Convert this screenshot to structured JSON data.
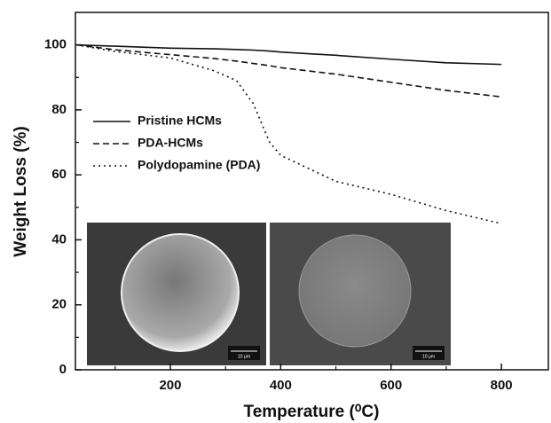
{
  "chart_data": {
    "type": "line",
    "x_label": "Temperature (⁰C)",
    "y_label": "Weight Loss (%)",
    "x": [
      30,
      100,
      200,
      280,
      320,
      350,
      380,
      400,
      450,
      500,
      600,
      700,
      800
    ],
    "series": [
      {
        "name": "Pristine HCMs",
        "color": "#111111",
        "dash": "solid",
        "values": [
          100,
          99.6,
          99,
          98.8,
          98.6,
          98.4,
          98.1,
          97.8,
          97.3,
          96.8,
          95.6,
          94.5,
          94
        ]
      },
      {
        "name": "PDA-HCMs",
        "color": "#111111",
        "dash": "dashed",
        "values": [
          100,
          98.5,
          97,
          95.8,
          95,
          94.3,
          93.6,
          93,
          92,
          91,
          88.5,
          86,
          84
        ]
      },
      {
        "name": "Polydopamine (PDA)",
        "color": "#111111",
        "dash": "dotted",
        "values": [
          100,
          98,
          96,
          92,
          89,
          82,
          70,
          66,
          62,
          58,
          54,
          49,
          45
        ]
      }
    ],
    "xlim": [
      28,
      885
    ],
    "ylim": [
      0,
      110
    ],
    "xticks": [
      200,
      400,
      600,
      800
    ],
    "yticks": [
      0,
      20,
      40,
      60,
      80,
      100
    ],
    "xminorticks": [
      100,
      300,
      500,
      700
    ],
    "yminorticks": [
      10,
      30,
      50,
      70,
      90
    ],
    "legend": "left",
    "insets": [
      {
        "scale_label": "10 μm"
      },
      {
        "scale_label": "10 μm"
      }
    ]
  }
}
